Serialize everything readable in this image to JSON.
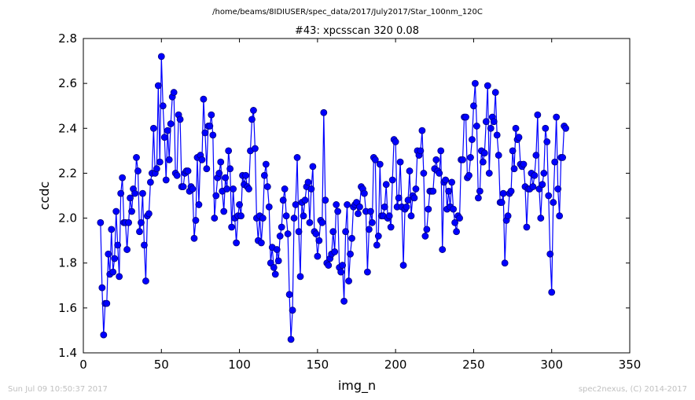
{
  "page": {
    "suptitle": "/home/beams/8IDIUSER/spec_data/2017/July2017/Star_100nm_120C",
    "footer_left": "Sun Jul 09 10:50:37 2017",
    "footer_right": "spec2nexus, (C) 2014-2017"
  },
  "colors": {
    "series": "#0000ff",
    "marker_edge": "#000080",
    "axes": "#000000",
    "footer": "#c0c0c0"
  },
  "chart_data": {
    "type": "line",
    "title": "#43: xpcsscan 320 0.08",
    "xlabel": "img_n",
    "ylabel": "ccdc",
    "xlim": [
      0,
      350
    ],
    "ylim": [
      1.4,
      2.8
    ],
    "xticks": [
      0,
      50,
      100,
      150,
      200,
      250,
      300,
      350
    ],
    "yticks": [
      1.4,
      1.6,
      1.8,
      2.0,
      2.2,
      2.4,
      2.6,
      2.8
    ],
    "ytick_labels": [
      "1.4",
      "1.6",
      "1.8",
      "2.0",
      "2.2",
      "2.4",
      "2.6",
      "2.8"
    ],
    "grid": false,
    "legend": "none",
    "markers": "circle",
    "series": [
      {
        "x_start": 11,
        "x_step": 1,
        "values": [
          1.98,
          1.69,
          1.48,
          1.62,
          1.62,
          1.84,
          1.75,
          1.95,
          1.76,
          1.82,
          2.03,
          1.88,
          1.74,
          2.11,
          2.18,
          1.98,
          1.98,
          1.86,
          1.98,
          2.09,
          2.03,
          2.13,
          2.11,
          2.27,
          2.21,
          1.94,
          1.98,
          2.11,
          1.88,
          1.72,
          2.01,
          2.02,
          2.16,
          2.2,
          2.4,
          2.2,
          2.22,
          2.59,
          2.25,
          2.72,
          2.5,
          2.36,
          2.17,
          2.39,
          2.26,
          2.42,
          2.54,
          2.56,
          2.2,
          2.19,
          2.46,
          2.44,
          2.14,
          2.14,
          2.2,
          2.21,
          2.21,
          2.12,
          2.14,
          2.13,
          1.91,
          1.99,
          2.27,
          2.06,
          2.28,
          2.26,
          2.53,
          2.38,
          2.22,
          2.41,
          2.41,
          2.46,
          2.37,
          2.0,
          2.1,
          2.18,
          2.2,
          2.25,
          2.12,
          2.03,
          2.18,
          2.13,
          2.3,
          2.22,
          1.96,
          2.13,
          2.0,
          1.89,
          2.01,
          2.06,
          2.01,
          2.19,
          2.15,
          2.19,
          2.14,
          2.13,
          2.3,
          2.44,
          2.48,
          2.31,
          2.0,
          1.9,
          2.01,
          1.89,
          2.0,
          2.19,
          2.24,
          2.14,
          2.05,
          1.8,
          1.87,
          1.78,
          1.75,
          1.86,
          1.81,
          1.92,
          1.96,
          2.08,
          2.13,
          2.01,
          1.93,
          1.66,
          1.46,
          1.59,
          2.0,
          2.06,
          2.27,
          1.94,
          1.74,
          2.07,
          2.01,
          2.08,
          2.14,
          2.16,
          1.98,
          2.13,
          2.23,
          1.94,
          1.93,
          1.83,
          1.9,
          1.99,
          1.98,
          2.47,
          2.08,
          1.8,
          1.79,
          1.82,
          1.84,
          1.94,
          1.85,
          2.06,
          2.03,
          1.78,
          1.76,
          1.79,
          1.63,
          1.94,
          2.06,
          1.72,
          1.84,
          1.91,
          2.05,
          2.06,
          2.07,
          2.02,
          2.05,
          2.14,
          2.13,
          2.11,
          2.03,
          1.76,
          1.95,
          2.03,
          1.98,
          2.27,
          2.26,
          1.88,
          1.92,
          2.24,
          2.01,
          2.01,
          2.05,
          2.15,
          2.0,
          2.01,
          1.96,
          2.17,
          2.35,
          2.34,
          2.05,
          2.09,
          2.25,
          2.05,
          1.79,
          2.04,
          2.05,
          2.08,
          2.21,
          2.01,
          2.1,
          2.09,
          2.13,
          2.3,
          2.28,
          2.3,
          2.39,
          2.2,
          1.92,
          1.95,
          2.04,
          2.12,
          2.12,
          2.12,
          2.22,
          2.26,
          2.21,
          2.2,
          2.3,
          1.86,
          2.16,
          2.17,
          2.04,
          2.12,
          2.05,
          2.16,
          2.04,
          1.98,
          1.94,
          2.01,
          2.0,
          2.26,
          2.26,
          2.45,
          2.45,
          2.18,
          2.19,
          2.27,
          2.35,
          2.5,
          2.6,
          2.41,
          2.09,
          2.12,
          2.3,
          2.25,
          2.29,
          2.43,
          2.59,
          2.2,
          2.4,
          2.45,
          2.43,
          2.56,
          2.37,
          2.28,
          2.07,
          2.07,
          2.11,
          1.8,
          1.99,
          2.01,
          2.11,
          2.12,
          2.3,
          2.22,
          2.4,
          2.35,
          2.36,
          2.24,
          2.23,
          2.24,
          2.14,
          1.96,
          2.13,
          2.13,
          2.2,
          2.14,
          2.19,
          2.28,
          2.46,
          2.13,
          2.0,
          2.15,
          2.2,
          2.4,
          2.34,
          2.1,
          1.84,
          1.67,
          2.07,
          2.25,
          2.45,
          2.13,
          2.01,
          2.27,
          2.27,
          2.41,
          2.4
        ]
      }
    ]
  }
}
